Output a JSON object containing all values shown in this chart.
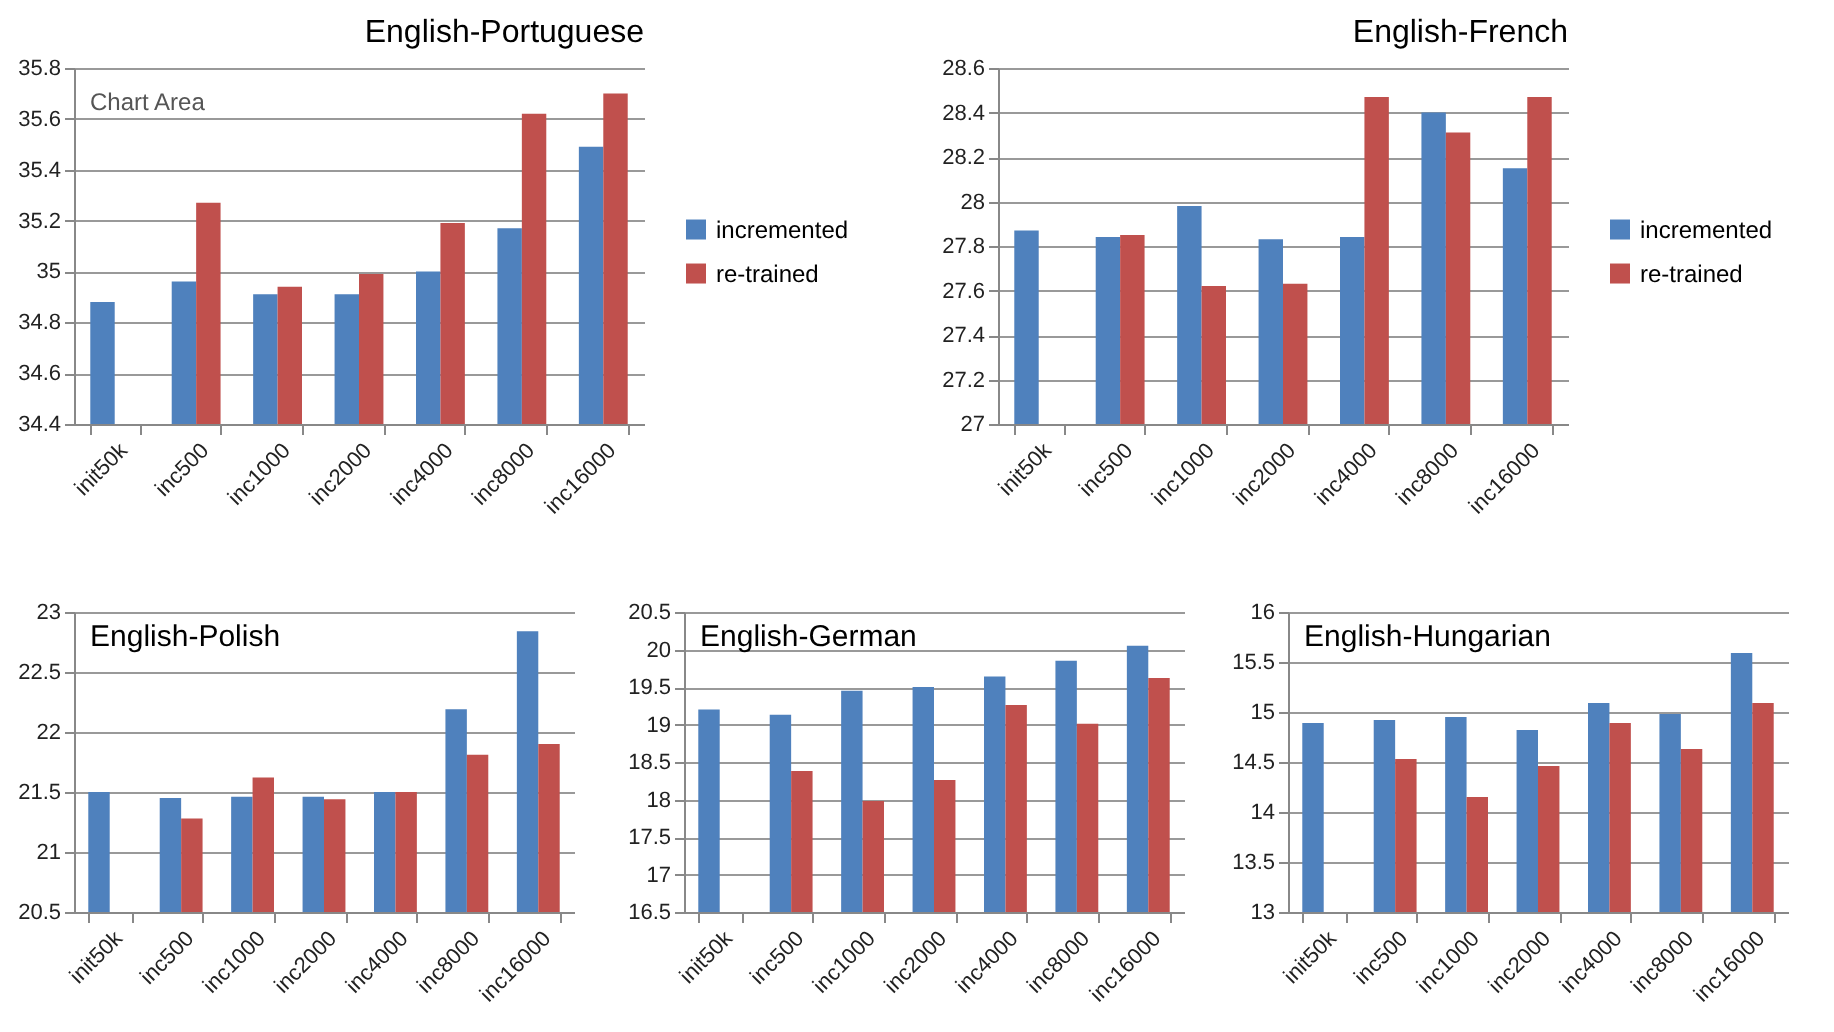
{
  "chart_data": [
    {
      "type": "bar",
      "title": "English-Portuguese",
      "categories": [
        "init50k",
        "inc500",
        "inc1000",
        "inc2000",
        "inc4000",
        "inc8000",
        "inc16000"
      ],
      "series": [
        {
          "name": "incremented",
          "color": "#4f81bd",
          "values": [
            34.88,
            34.96,
            34.91,
            34.91,
            35.0,
            35.17,
            35.49
          ]
        },
        {
          "name": "re-trained",
          "color": "#c0504d",
          "values": [
            null,
            35.27,
            34.94,
            34.99,
            35.19,
            35.62,
            35.7
          ]
        }
      ],
      "ylim": [
        34.4,
        35.8
      ],
      "yticks": [
        34.4,
        34.6,
        34.8,
        35,
        35.2,
        35.4,
        35.6,
        35.8
      ],
      "grid": "y",
      "legend": "right",
      "annotations": [
        "Chart Area"
      ]
    },
    {
      "type": "bar",
      "title": "English-French",
      "categories": [
        "init50k",
        "inc500",
        "inc1000",
        "inc2000",
        "inc4000",
        "inc8000",
        "inc16000"
      ],
      "series": [
        {
          "name": "incremented",
          "color": "#4f81bd",
          "values": [
            27.87,
            27.84,
            27.98,
            27.83,
            27.84,
            28.4,
            28.15
          ]
        },
        {
          "name": "re-trained",
          "color": "#c0504d",
          "values": [
            null,
            27.85,
            27.62,
            27.63,
            28.47,
            28.31,
            28.47
          ]
        }
      ],
      "ylim": [
        27,
        28.6
      ],
      "yticks": [
        27,
        27.2,
        27.4,
        27.6,
        27.8,
        28,
        28.2,
        28.4,
        28.6
      ],
      "grid": "y",
      "legend": "right"
    },
    {
      "type": "bar",
      "title": "English-Polish",
      "categories": [
        "init50k",
        "inc500",
        "inc1000",
        "inc2000",
        "inc4000",
        "inc8000",
        "inc16000"
      ],
      "series": [
        {
          "color": "#4f81bd",
          "values": [
            21.5,
            21.45,
            21.46,
            21.46,
            21.5,
            22.19,
            22.84
          ]
        },
        {
          "color": "#c0504d",
          "values": [
            null,
            21.28,
            21.62,
            21.44,
            21.5,
            21.81,
            21.9
          ]
        }
      ],
      "ylim": [
        20.5,
        23
      ],
      "yticks": [
        20.5,
        21,
        21.5,
        22,
        22.5,
        23
      ],
      "grid": "y"
    },
    {
      "type": "bar",
      "title": "English-German",
      "categories": [
        "init50k",
        "inc500",
        "inc1000",
        "inc2000",
        "inc4000",
        "inc8000",
        "inc16000"
      ],
      "series": [
        {
          "color": "#4f81bd",
          "values": [
            19.2,
            19.13,
            19.45,
            19.5,
            19.64,
            19.85,
            20.05
          ]
        },
        {
          "color": "#c0504d",
          "values": [
            null,
            18.38,
            17.98,
            18.26,
            19.26,
            19.01,
            19.62
          ]
        }
      ],
      "ylim": [
        16.5,
        20.5
      ],
      "yticks": [
        16.5,
        17,
        17.5,
        18,
        18.5,
        19,
        19.5,
        20,
        20.5
      ],
      "grid": "y"
    },
    {
      "type": "bar",
      "title": "English-Hungarian",
      "categories": [
        "init50k",
        "inc500",
        "inc1000",
        "inc2000",
        "inc4000",
        "inc8000",
        "inc16000"
      ],
      "series": [
        {
          "color": "#4f81bd",
          "values": [
            14.89,
            14.92,
            14.95,
            14.82,
            15.09,
            14.98,
            15.59
          ]
        },
        {
          "color": "#c0504d",
          "values": [
            null,
            14.53,
            14.15,
            14.46,
            14.89,
            14.63,
            15.09
          ]
        }
      ],
      "ylim": [
        13,
        16
      ],
      "yticks": [
        13,
        13.5,
        14,
        14.5,
        15,
        15.5,
        16
      ],
      "grid": "y"
    }
  ]
}
